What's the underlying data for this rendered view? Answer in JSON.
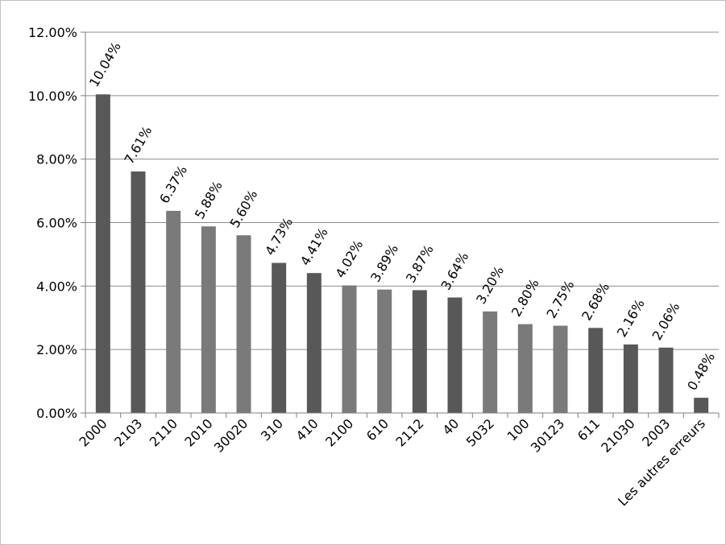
{
  "chart_data": {
    "type": "bar",
    "title": "",
    "xlabel": "",
    "ylabel": "",
    "ylim": [
      0,
      12
    ],
    "y_tick_labels": [
      "0.00%",
      "2.00%",
      "4.00%",
      "6.00%",
      "8.00%",
      "10.00%",
      "12.00%"
    ],
    "grid": true,
    "legend": "none",
    "categories": [
      "2000",
      "2103",
      "2110",
      "2010",
      "30020",
      "310",
      "410",
      "2100",
      "610",
      "2112",
      "40",
      "5032",
      "100",
      "30123",
      "611",
      "21030",
      "2003",
      "Les autres erreurs"
    ],
    "values": [
      10.04,
      7.61,
      6.37,
      5.88,
      5.6,
      4.73,
      4.41,
      4.02,
      3.89,
      3.87,
      3.64,
      3.2,
      2.8,
      2.75,
      2.68,
      2.16,
      2.06,
      0.48
    ],
    "data_labels": [
      "10.04%",
      "7.61%",
      "6.37%",
      "5.88%",
      "5.60%",
      "4.73%",
      "4.41%",
      "4.02%",
      "3.89%",
      "3.87%",
      "3.64%",
      "3.20%",
      "2.80%",
      "2.75%",
      "2.68%",
      "2.16%",
      "2.06%",
      "0.48%"
    ],
    "colors": {
      "bar_dark": "#585858",
      "bar_light": "#7a7a7a",
      "grid": "#8c8c8c",
      "axis": "#7f7f7f",
      "text": "#000000"
    }
  }
}
